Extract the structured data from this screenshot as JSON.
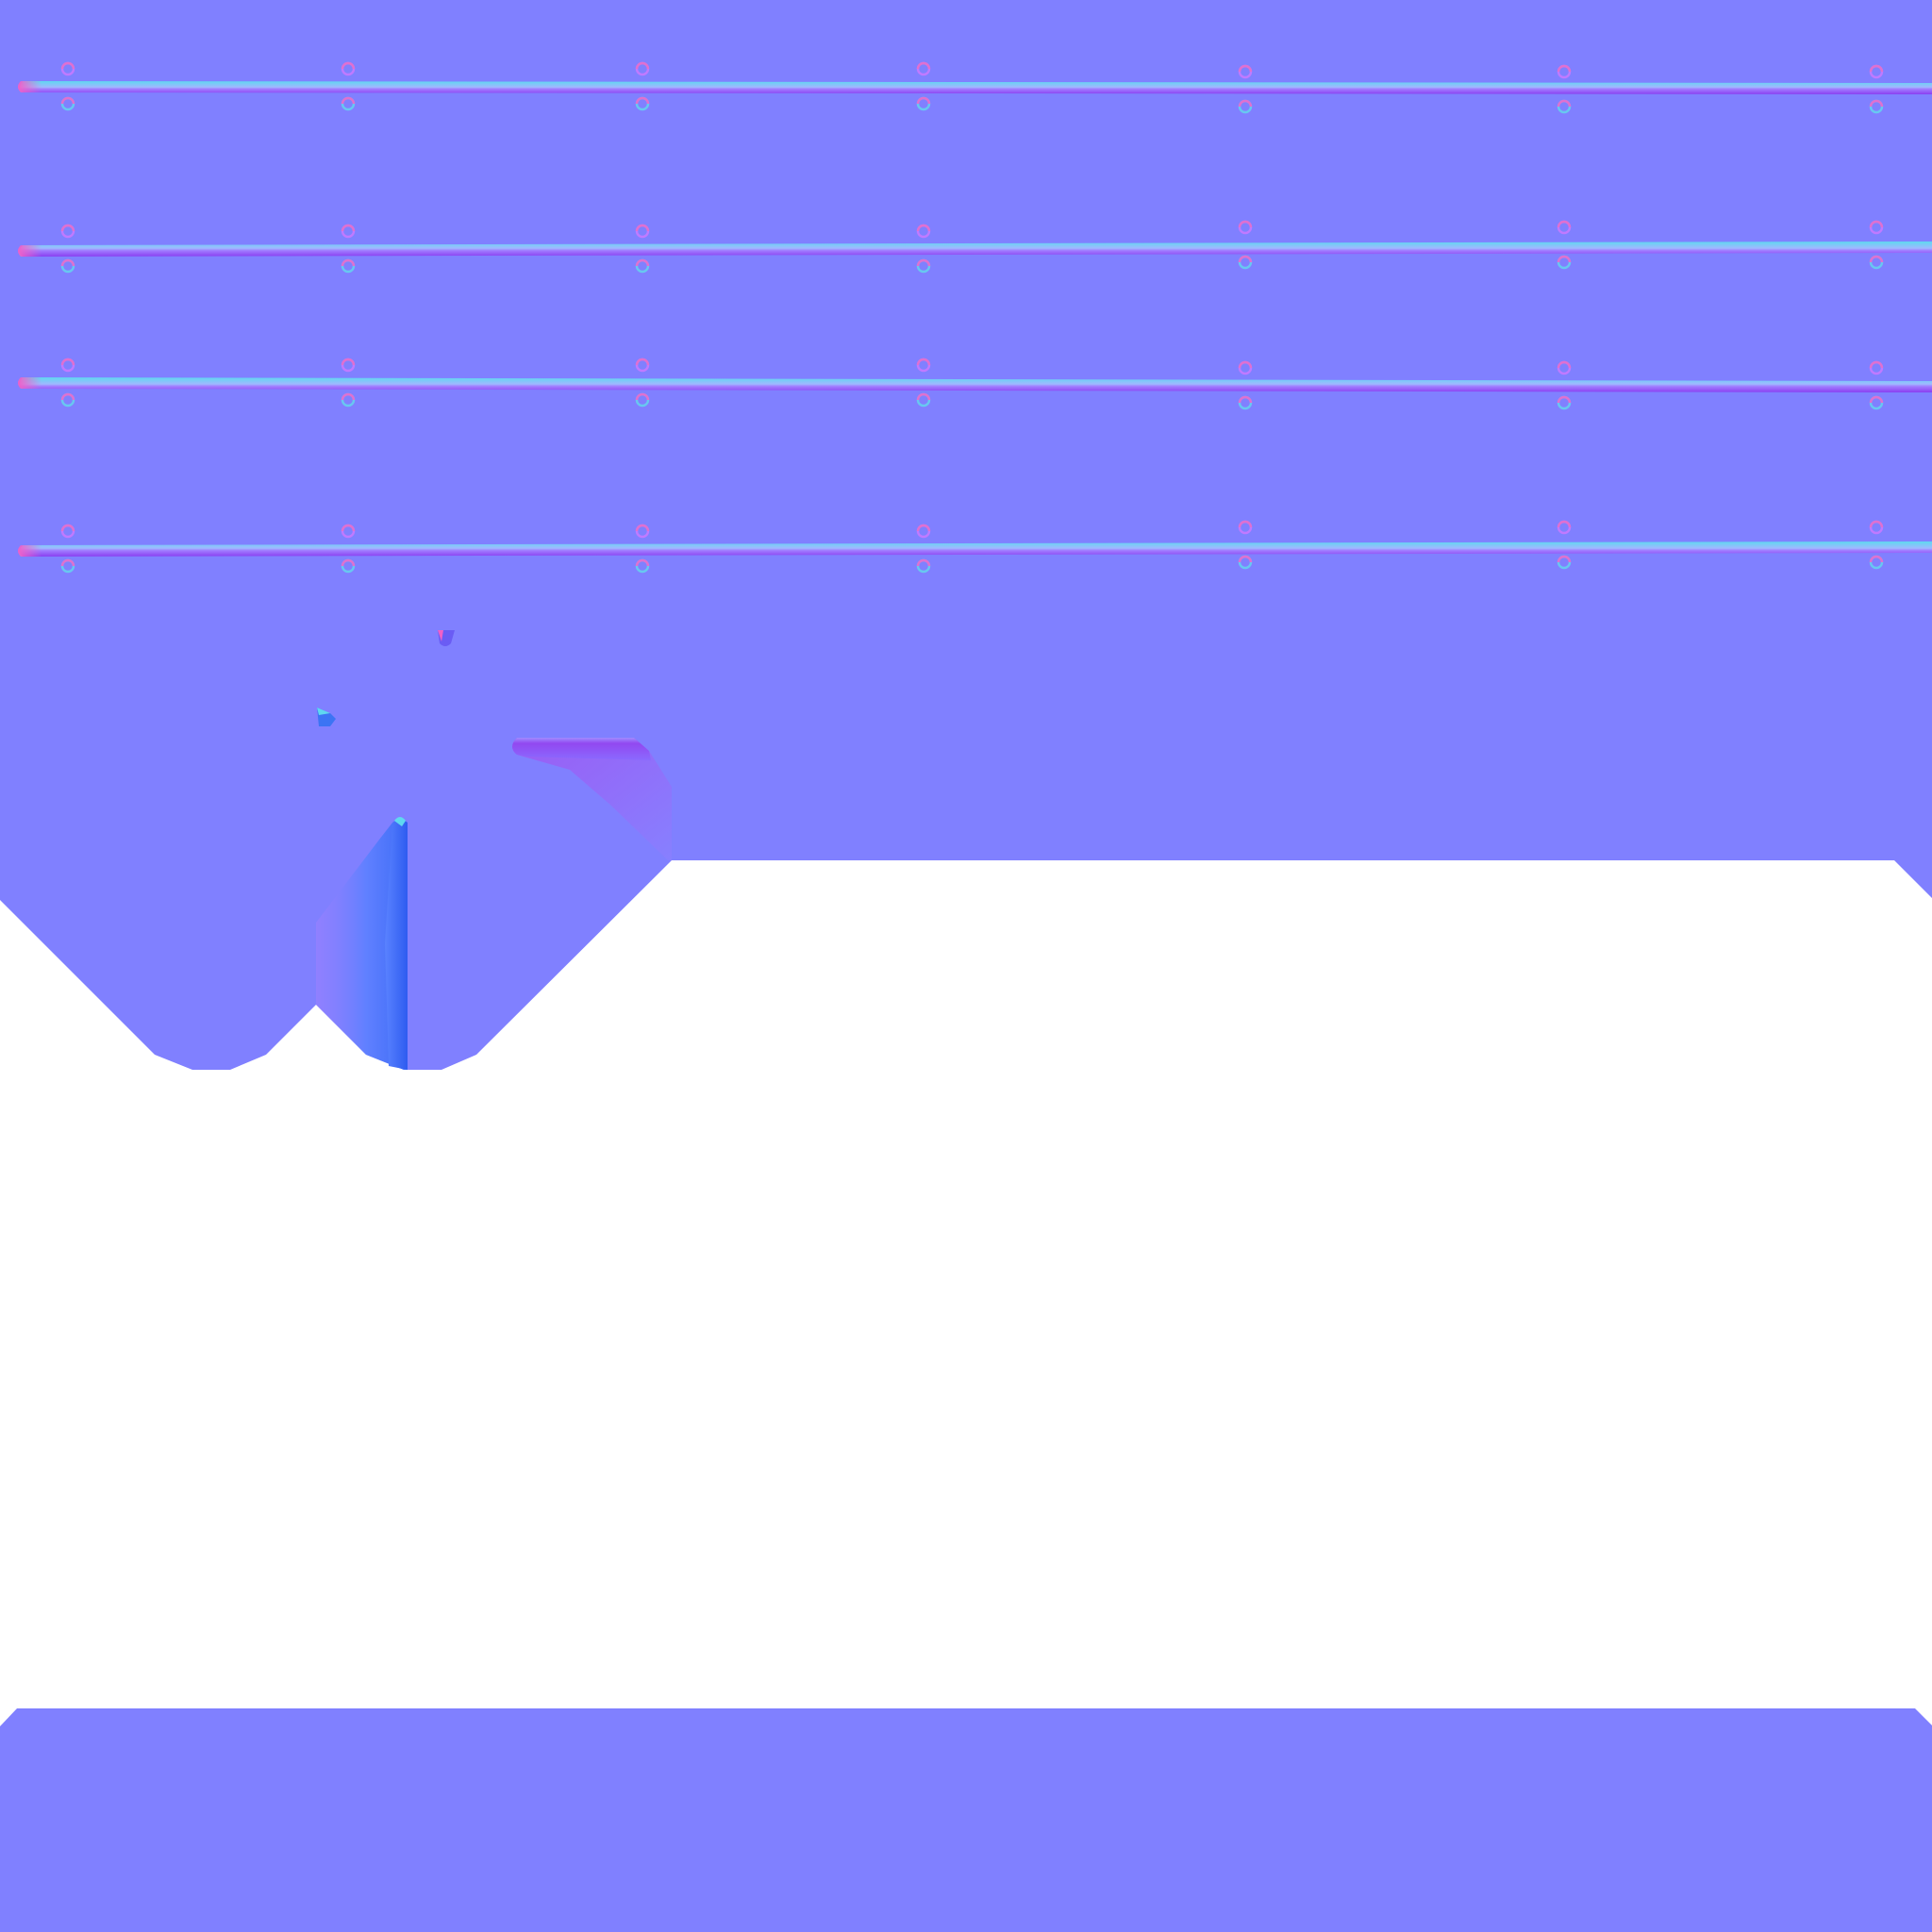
{
  "texture": {
    "kind": "normal-map",
    "colors": {
      "background": "#ffffff",
      "flat": "#8080ff",
      "rail_light": "#5fd8f0",
      "rail_dark": "#8a3ef0",
      "rail_end": "#f060c8",
      "fold_light": "#5a7cff",
      "fold_dark": "#2e5cf0",
      "fold_violet": "#9a70ff",
      "tab_violet": "#9248f0",
      "ring_top": "#c07aff",
      "ring_bottom": "#68c8f0"
    },
    "rail_count": 4,
    "rivets_per_rail": 7,
    "shapes": [
      "upper-panel",
      "lower-band",
      "rails",
      "rivet-rings",
      "fold-tab",
      "fold-wedge",
      "small-nubs"
    ]
  }
}
